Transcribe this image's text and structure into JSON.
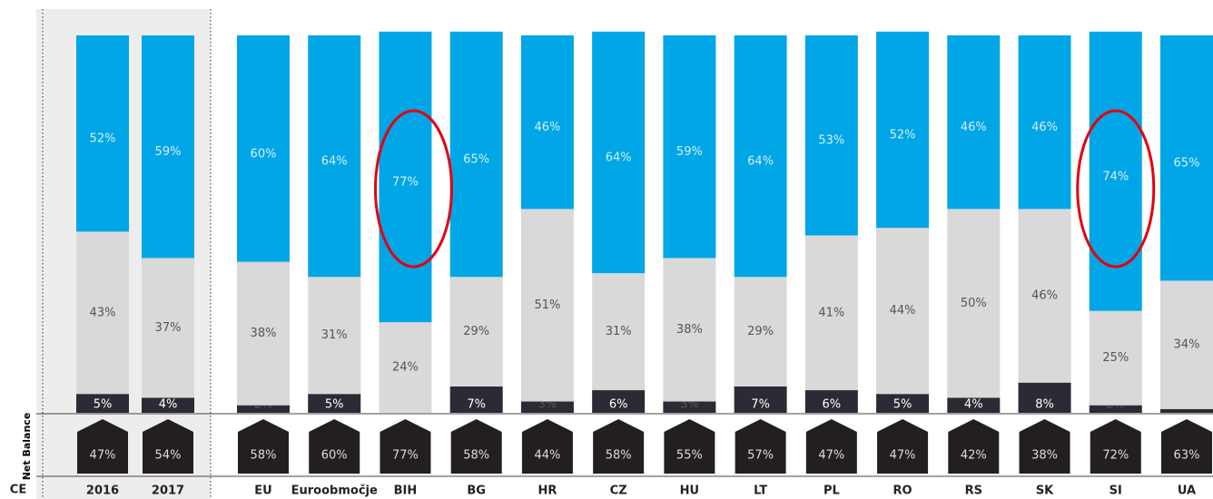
{
  "chart_data": {
    "type": "stacked_bar",
    "categories": [
      "2016",
      "2017",
      "EU",
      "Euroobmočje",
      "BIH",
      "BG",
      "HR",
      "CZ",
      "HU",
      "LT",
      "PL",
      "RO",
      "RS",
      "SK",
      "SI",
      "UA"
    ],
    "ylim": [
      0,
      100
    ],
    "series": [
      {
        "color": "#2b2b35",
        "values": [
          5,
          4,
          2,
          5,
          null,
          7,
          3,
          6,
          3,
          7,
          6,
          5,
          4,
          8,
          2,
          1
        ],
        "value_labels": [
          "5%",
          "4%",
          "2%",
          "5%",
          null,
          "7%",
          "3%",
          "6%",
          "3%",
          "7%",
          "6%",
          "5%",
          "4%",
          "8%",
          "2%",
          "1%"
        ]
      },
      {
        "color": "#d9d9d9",
        "values": [
          43,
          37,
          38,
          31,
          24,
          29,
          51,
          31,
          38,
          29,
          41,
          44,
          50,
          46,
          25,
          34
        ],
        "value_labels": [
          "43%",
          "37%",
          "38%",
          "31%",
          "24%",
          "29%",
          "51%",
          "31%",
          "38%",
          "29%",
          "41%",
          "44%",
          "50%",
          "46%",
          "25%",
          "34%"
        ]
      },
      {
        "color": "#00a6e6",
        "values": [
          52,
          59,
          60,
          64,
          77,
          65,
          46,
          64,
          59,
          64,
          53,
          52,
          46,
          46,
          74,
          65
        ],
        "value_labels": [
          "52%",
          "59%",
          "60%",
          "64%",
          "77%",
          "65%",
          "46%",
          "64%",
          "59%",
          "64%",
          "53%",
          "52%",
          "46%",
          "46%",
          "74%",
          "65%"
        ]
      }
    ],
    "net_balance": {
      "label": "Net Balance",
      "values": [
        47,
        54,
        58,
        60,
        77,
        58,
        44,
        58,
        55,
        57,
        47,
        47,
        42,
        38,
        72,
        63
      ],
      "value_labels": [
        "47%",
        "54%",
        "58%",
        "60%",
        "77%",
        "58%",
        "44%",
        "58%",
        "55%",
        "57%",
        "47%",
        "47%",
        "42%",
        "38%",
        "72%",
        "63%"
      ]
    },
    "group_label": "CE"
  }
}
